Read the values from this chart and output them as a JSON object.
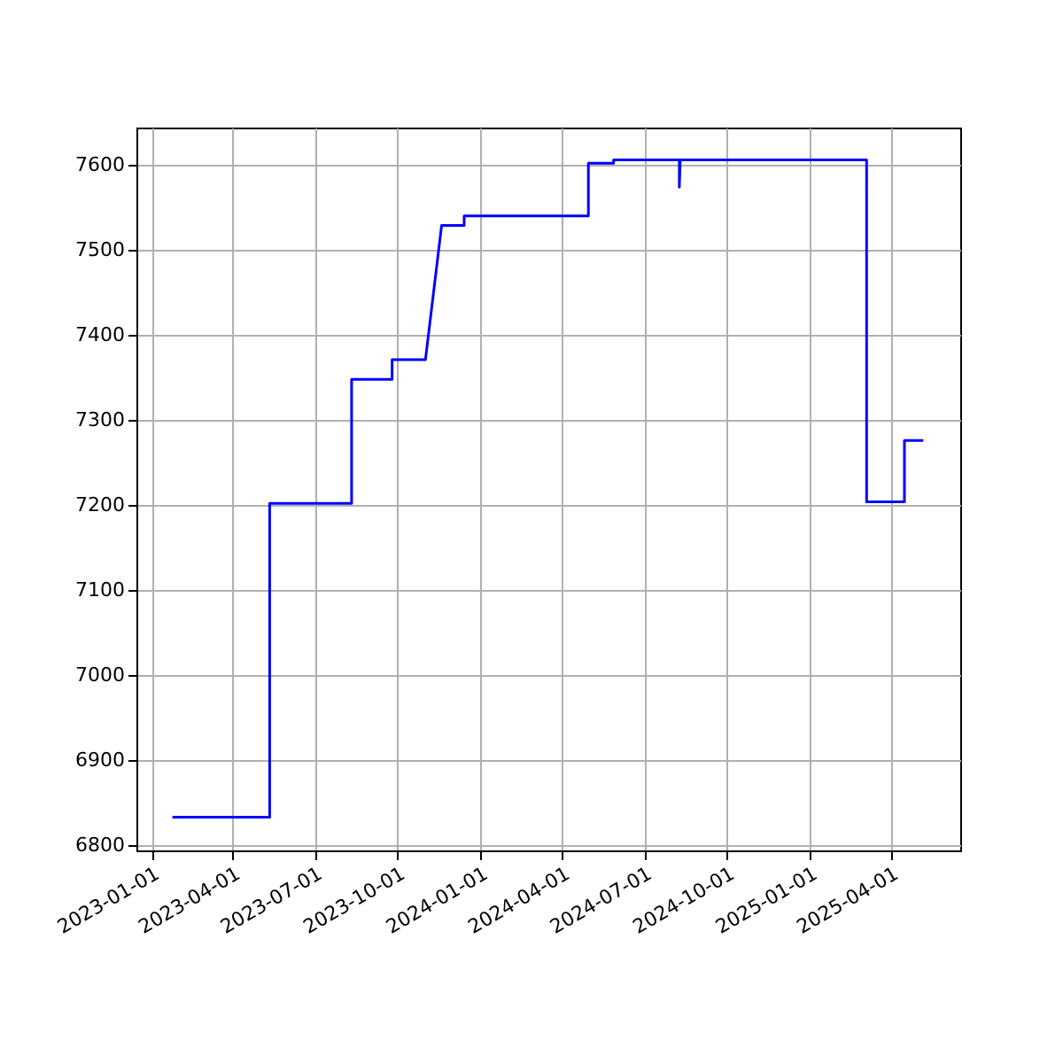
{
  "chart_data": {
    "type": "line",
    "x": [
      "2023-01-24",
      "2023-05-12",
      "2023-05-12",
      "2023-08-11",
      "2023-08-11",
      "2023-09-25",
      "2023-09-25",
      "2023-11-01",
      "2023-11-19",
      "2023-12-14",
      "2023-12-14",
      "2024-04-30",
      "2024-04-30",
      "2024-05-28",
      "2024-05-28",
      "2024-08-09",
      "2024-08-09",
      "2024-08-10",
      "2025-03-05",
      "2025-03-05",
      "2025-04-16",
      "2025-04-16",
      "2025-05-07"
    ],
    "series": [
      {
        "color": "#0000ff",
        "values": [
          6833,
          6833,
          7202,
          7202,
          7348,
          7348,
          7371,
          7371,
          7529,
          7529,
          7540,
          7540,
          7602,
          7602,
          7606,
          7606,
          7574,
          7606,
          7606,
          7204,
          7204,
          7276,
          7276
        ]
      }
    ],
    "xlim": [
      "2022-12-15",
      "2025-06-17"
    ],
    "ylim": [
      6794,
      7644
    ],
    "xticks": [
      "2023-01-01",
      "2023-04-01",
      "2023-07-01",
      "2023-10-01",
      "2024-01-01",
      "2024-04-01",
      "2024-07-01",
      "2024-10-01",
      "2025-01-01",
      "2025-04-01"
    ],
    "yticks": [
      6800,
      6900,
      7000,
      7100,
      7200,
      7300,
      7400,
      7500,
      7600
    ],
    "grid": true
  }
}
